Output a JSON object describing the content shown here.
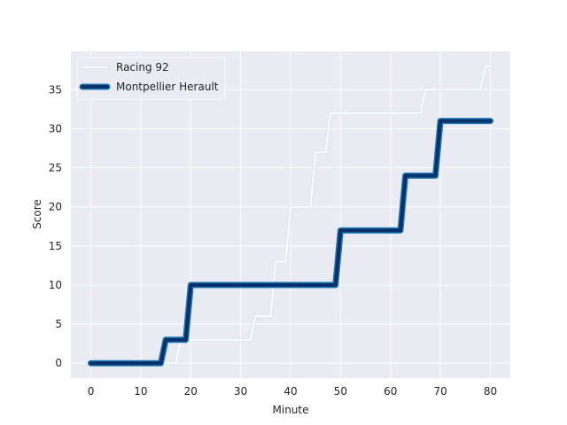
{
  "chart_data": {
    "type": "line",
    "title": "",
    "xlabel": "Minute",
    "ylabel": "Score",
    "xlim": [
      -4,
      84
    ],
    "ylim": [
      -1.9,
      39.9
    ],
    "xticks": [
      0,
      10,
      20,
      30,
      40,
      50,
      60,
      70,
      80
    ],
    "yticks": [
      0,
      5,
      10,
      15,
      20,
      25,
      30,
      35
    ],
    "grid": true,
    "legend_position": "top-left",
    "background": "#eaeaf2",
    "series": [
      {
        "name": "Racing 92",
        "color": "#ffffff",
        "outline": "#d6e6f4",
        "points": [
          [
            0,
            0
          ],
          [
            17,
            0
          ],
          [
            18,
            3
          ],
          [
            32,
            3
          ],
          [
            33,
            6
          ],
          [
            36,
            6
          ],
          [
            37,
            13
          ],
          [
            39,
            13
          ],
          [
            40,
            20
          ],
          [
            44,
            20
          ],
          [
            45,
            27
          ],
          [
            47,
            27
          ],
          [
            48,
            32
          ],
          [
            66,
            32
          ],
          [
            67,
            35
          ],
          [
            78,
            35
          ],
          [
            79,
            38
          ],
          [
            80,
            38
          ]
        ]
      },
      {
        "name": "Montpellier Herault",
        "color": "#08306b",
        "outline": "#1f77b4",
        "points": [
          [
            0,
            0
          ],
          [
            14,
            0
          ],
          [
            15,
            3
          ],
          [
            19,
            3
          ],
          [
            20,
            10
          ],
          [
            49,
            10
          ],
          [
            50,
            17
          ],
          [
            62,
            17
          ],
          [
            63,
            24
          ],
          [
            69,
            24
          ],
          [
            70,
            31
          ],
          [
            80,
            31
          ]
        ]
      }
    ]
  }
}
